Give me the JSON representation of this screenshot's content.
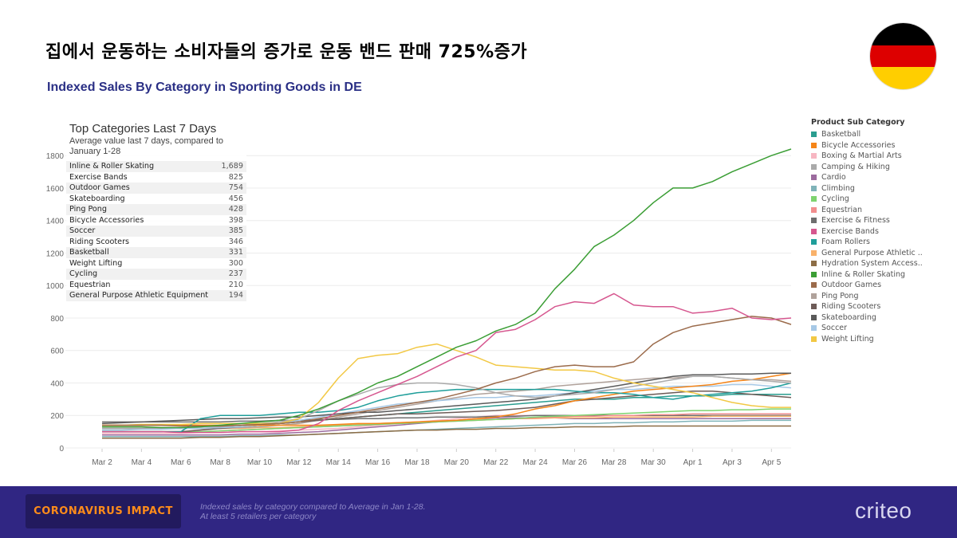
{
  "headline": "집에서 운동하는 소비자들의 증가로 운동 밴드 판매 725%증가",
  "subtitle": "Indexed Sales By Category in Sporting Goods in DE",
  "flag_colors": [
    "#000000",
    "#dd0000",
    "#ffce00"
  ],
  "top_list": {
    "title": "Top Categories Last 7 Days",
    "subtitle": "Average value last 7 days, compared to January 1-28",
    "rows": [
      {
        "name": "Inline & Roller Skating",
        "value": "1,689"
      },
      {
        "name": "Exercise Bands",
        "value": "825"
      },
      {
        "name": "Outdoor Games",
        "value": "754"
      },
      {
        "name": "Skateboarding",
        "value": "456"
      },
      {
        "name": "Ping Pong",
        "value": "428"
      },
      {
        "name": "Bicycle Accessories",
        "value": "398"
      },
      {
        "name": "Soccer",
        "value": "385"
      },
      {
        "name": "Riding Scooters",
        "value": "346"
      },
      {
        "name": "Basketball",
        "value": "331"
      },
      {
        "name": "Weight Lifting",
        "value": "300"
      },
      {
        "name": "Cycling",
        "value": "237"
      },
      {
        "name": "Equestrian",
        "value": "210"
      },
      {
        "name": "General Purpose Athletic Equipment",
        "value": "194"
      }
    ]
  },
  "legend": {
    "title": "Product Sub Category",
    "items": [
      {
        "label": "Basketball",
        "color": "#2a9d8f"
      },
      {
        "label": "Bicycle Accessories",
        "color": "#f58518"
      },
      {
        "label": "Boxing & Martial Arts",
        "color": "#f7b6c2"
      },
      {
        "label": "Camping & Hiking",
        "color": "#aaaaaa"
      },
      {
        "label": "Cardio",
        "color": "#9c6b9e"
      },
      {
        "label": "Climbing",
        "color": "#7fb3b8"
      },
      {
        "label": "Cycling",
        "color": "#7ed36f"
      },
      {
        "label": "Equestrian",
        "color": "#f28e8e"
      },
      {
        "label": "Exercise & Fitness",
        "color": "#6e6e6e"
      },
      {
        "label": "Exercise Bands",
        "color": "#d6578f"
      },
      {
        "label": "Foam Rollers",
        "color": "#1f9e9a"
      },
      {
        "label": "General Purpose Athletic ..",
        "color": "#f9b26b"
      },
      {
        "label": "Hydration System Access..",
        "color": "#8c6d46"
      },
      {
        "label": "Inline & Roller Skating",
        "color": "#3b9e35"
      },
      {
        "label": "Outdoor Games",
        "color": "#9b6b4b"
      },
      {
        "label": "Ping Pong",
        "color": "#b0a29b"
      },
      {
        "label": "Riding Scooters",
        "color": "#6d5b57"
      },
      {
        "label": "Skateboarding",
        "color": "#5a5a5a"
      },
      {
        "label": "Soccer",
        "color": "#a6c8e6"
      },
      {
        "label": "Weight Lifting",
        "color": "#f2c844"
      }
    ]
  },
  "chart_data": {
    "type": "line",
    "x_tick_labels": [
      "Mar 2",
      "Mar 4",
      "Mar 6",
      "Mar 8",
      "Mar 10",
      "Mar 12",
      "Mar 14",
      "Mar 16",
      "Mar 18",
      "Mar 20",
      "Mar 22",
      "Mar 24",
      "Mar 26",
      "Mar 28",
      "Mar 30",
      "Apr 1",
      "Apr 3",
      "Apr 5"
    ],
    "x_dates": [
      "Mar 2",
      "Mar 3",
      "Mar 4",
      "Mar 5",
      "Mar 6",
      "Mar 7",
      "Mar 8",
      "Mar 9",
      "Mar 10",
      "Mar 11",
      "Mar 12",
      "Mar 13",
      "Mar 14",
      "Mar 15",
      "Mar 16",
      "Mar 17",
      "Mar 18",
      "Mar 19",
      "Mar 20",
      "Mar 21",
      "Mar 22",
      "Mar 23",
      "Mar 24",
      "Mar 25",
      "Mar 26",
      "Mar 27",
      "Mar 28",
      "Mar 29",
      "Mar 30",
      "Mar 31",
      "Apr 1",
      "Apr 2",
      "Apr 3",
      "Apr 4",
      "Apr 5",
      "Apr 6"
    ],
    "y_ticks": [
      0,
      200,
      400,
      600,
      800,
      1000,
      1200,
      1400,
      1600,
      1800
    ],
    "ylim": [
      0,
      1850
    ],
    "grid": true,
    "series": [
      {
        "name": "Inline & Roller Skating",
        "color": "#3b9e35",
        "values": [
          130,
          130,
          130,
          125,
          125,
          130,
          140,
          150,
          160,
          170,
          200,
          240,
          290,
          340,
          400,
          440,
          500,
          560,
          620,
          660,
          720,
          760,
          830,
          980,
          1100,
          1240,
          1310,
          1400,
          1510,
          1600,
          1600,
          1640,
          1700,
          1750,
          1800,
          1840
        ]
      },
      {
        "name": "Exercise Bands",
        "color": "#d6578f",
        "values": [
          100,
          100,
          100,
          100,
          95,
          95,
          95,
          100,
          100,
          100,
          110,
          150,
          230,
          290,
          340,
          390,
          440,
          500,
          560,
          600,
          710,
          730,
          790,
          870,
          900,
          890,
          950,
          880,
          870,
          870,
          830,
          840,
          860,
          800,
          790,
          800
        ]
      },
      {
        "name": "Outdoor Games",
        "color": "#9b6b4b",
        "values": [
          140,
          140,
          140,
          140,
          135,
          135,
          135,
          140,
          145,
          150,
          160,
          180,
          200,
          220,
          240,
          260,
          280,
          300,
          330,
          360,
          400,
          430,
          470,
          500,
          510,
          500,
          500,
          530,
          640,
          710,
          750,
          770,
          790,
          810,
          800,
          760
        ]
      },
      {
        "name": "Weight Lifting",
        "color": "#f2c844",
        "values": [
          140,
          140,
          145,
          145,
          145,
          150,
          150,
          150,
          150,
          150,
          180,
          280,
          430,
          550,
          570,
          580,
          620,
          640,
          600,
          560,
          510,
          500,
          490,
          480,
          480,
          470,
          430,
          400,
          380,
          360,
          340,
          310,
          280,
          260,
          250,
          250
        ]
      },
      {
        "name": "Camping & Hiking",
        "color": "#aaaaaa",
        "values": [
          120,
          120,
          120,
          125,
          125,
          130,
          130,
          140,
          150,
          160,
          180,
          230,
          290,
          330,
          370,
          390,
          400,
          400,
          390,
          370,
          340,
          320,
          310,
          320,
          330,
          340,
          360,
          380,
          400,
          420,
          440,
          440,
          430,
          420,
          410,
          400
        ]
      },
      {
        "name": "Foam Rollers",
        "color": "#1f9e9a",
        "values": [
          100,
          100,
          100,
          100,
          100,
          180,
          200,
          200,
          200,
          210,
          220,
          220,
          230,
          250,
          290,
          320,
          340,
          350,
          360,
          360,
          360,
          360,
          360,
          360,
          350,
          340,
          340,
          330,
          310,
          300,
          320,
          330,
          340,
          350,
          370,
          400
        ]
      },
      {
        "name": "Skateboarding",
        "color": "#5a5a5a",
        "values": [
          150,
          155,
          160,
          165,
          170,
          175,
          180,
          180,
          185,
          190,
          190,
          200,
          210,
          220,
          220,
          230,
          240,
          250,
          260,
          270,
          280,
          290,
          300,
          320,
          340,
          360,
          380,
          400,
          420,
          440,
          450,
          450,
          455,
          455,
          460,
          460
        ]
      },
      {
        "name": "Bicycle Accessories",
        "color": "#f58518",
        "values": [
          140,
          140,
          140,
          140,
          140,
          140,
          140,
          140,
          140,
          140,
          140,
          140,
          145,
          150,
          150,
          155,
          160,
          165,
          170,
          180,
          190,
          210,
          240,
          260,
          290,
          310,
          330,
          350,
          360,
          370,
          380,
          390,
          410,
          420,
          440,
          460
        ]
      },
      {
        "name": "Soccer",
        "color": "#a6c8e6",
        "values": [
          110,
          110,
          115,
          115,
          120,
          120,
          125,
          130,
          140,
          150,
          170,
          190,
          210,
          230,
          250,
          270,
          280,
          290,
          300,
          310,
          310,
          320,
          320,
          330,
          340,
          350,
          360,
          360,
          370,
          380,
          380,
          380,
          390,
          390,
          380,
          370
        ]
      },
      {
        "name": "Riding Scooters",
        "color": "#6d5b57",
        "values": [
          100,
          100,
          100,
          100,
          100,
          110,
          120,
          130,
          140,
          150,
          160,
          170,
          180,
          190,
          200,
          210,
          210,
          215,
          220,
          225,
          230,
          240,
          250,
          270,
          290,
          300,
          310,
          320,
          330,
          340,
          350,
          350,
          340,
          330,
          320,
          310
        ]
      },
      {
        "name": "Ping Pong",
        "color": "#b0a29b",
        "values": [
          120,
          120,
          120,
          120,
          120,
          120,
          120,
          125,
          130,
          140,
          150,
          170,
          190,
          210,
          230,
          250,
          270,
          290,
          310,
          330,
          340,
          350,
          360,
          380,
          390,
          400,
          410,
          420,
          430,
          430,
          440,
          440,
          430,
          420,
          420,
          410
        ]
      },
      {
        "name": "Basketball",
        "color": "#2a9d8f",
        "values": [
          120,
          120,
          120,
          120,
          120,
          120,
          125,
          130,
          140,
          150,
          160,
          170,
          180,
          190,
          200,
          210,
          220,
          230,
          240,
          250,
          260,
          270,
          280,
          290,
          300,
          300,
          300,
          310,
          310,
          320,
          320,
          320,
          330,
          330,
          330,
          330
        ]
      },
      {
        "name": "Cycling",
        "color": "#7ed36f",
        "values": [
          100,
          100,
          100,
          100,
          100,
          100,
          105,
          110,
          115,
          120,
          125,
          130,
          135,
          140,
          145,
          150,
          155,
          160,
          165,
          170,
          175,
          180,
          190,
          195,
          200,
          205,
          210,
          215,
          220,
          225,
          230,
          230,
          235,
          235,
          240,
          240
        ]
      },
      {
        "name": "Equestrian",
        "color": "#f28e8e",
        "values": [
          100,
          100,
          100,
          100,
          100,
          100,
          105,
          110,
          115,
          120,
          125,
          130,
          135,
          140,
          145,
          150,
          155,
          160,
          165,
          170,
          175,
          180,
          185,
          190,
          195,
          195,
          200,
          200,
          205,
          205,
          210,
          210,
          210,
          210,
          210,
          210
        ]
      },
      {
        "name": "General Purpose Athletic ..",
        "color": "#f9b26b",
        "values": [
          120,
          120,
          120,
          120,
          120,
          120,
          120,
          120,
          125,
          125,
          130,
          135,
          140,
          145,
          150,
          155,
          160,
          165,
          170,
          175,
          175,
          180,
          180,
          185,
          185,
          185,
          190,
          190,
          190,
          190,
          190,
          195,
          195,
          195,
          195,
          195
        ]
      },
      {
        "name": "Exercise & Fitness",
        "color": "#6e6e6e",
        "values": [
          160,
          160,
          160,
          160,
          160,
          160,
          160,
          165,
          165,
          170,
          170,
          175,
          175,
          180,
          180,
          185,
          185,
          190,
          190,
          190,
          195,
          195,
          200,
          200,
          200,
          200,
          200,
          200,
          200,
          200,
          200,
          200,
          200,
          200,
          200,
          200
        ]
      },
      {
        "name": "Hydration System Access..",
        "color": "#8c6d46",
        "values": [
          60,
          60,
          60,
          60,
          60,
          65,
          65,
          70,
          70,
          75,
          80,
          85,
          90,
          95,
          100,
          105,
          110,
          110,
          115,
          115,
          120,
          120,
          125,
          125,
          130,
          130,
          130,
          135,
          135,
          135,
          135,
          135,
          135,
          135,
          135,
          135
        ]
      },
      {
        "name": "Boxing & Martial Arts",
        "color": "#f7b6c2",
        "values": [
          90,
          90,
          90,
          90,
          90,
          95,
          95,
          100,
          100,
          105,
          110,
          115,
          120,
          130,
          140,
          150,
          160,
          170,
          180,
          190,
          200,
          200,
          200,
          200,
          200,
          200,
          200,
          200,
          200,
          200,
          200,
          200,
          200,
          200,
          200,
          200
        ]
      },
      {
        "name": "Cardio",
        "color": "#9c6b9e",
        "values": [
          80,
          80,
          80,
          80,
          80,
          80,
          80,
          85,
          85,
          90,
          95,
          100,
          110,
          120,
          130,
          140,
          150,
          160,
          170,
          180,
          185,
          185,
          185,
          185,
          180,
          180,
          180,
          180,
          180,
          180,
          180,
          180,
          180,
          180,
          180,
          180
        ]
      },
      {
        "name": "Climbing",
        "color": "#7fb3b8",
        "values": [
          70,
          70,
          70,
          70,
          70,
          70,
          70,
          75,
          75,
          80,
          80,
          85,
          90,
          95,
          100,
          105,
          110,
          115,
          120,
          125,
          130,
          135,
          140,
          145,
          150,
          150,
          155,
          155,
          160,
          160,
          165,
          165,
          165,
          170,
          170,
          170
        ]
      }
    ]
  },
  "footer": {
    "badge": "CORONAVIRUS IMPACT",
    "note_line1": "Indexed sales by category compared to Average in Jan 1-28.",
    "note_line2": "At least 5 retailers per category",
    "logo": "criteo"
  }
}
